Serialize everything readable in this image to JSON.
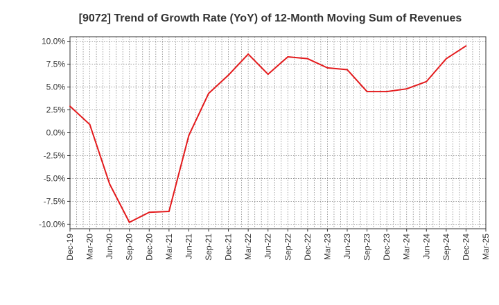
{
  "chart_data": {
    "type": "line",
    "title": "[9072]  Trend of Growth Rate (YoY) of 12-Month Moving Sum of Revenues",
    "xlabel": "",
    "ylabel": "",
    "x_tick_labels": [
      "Dec-19",
      "Mar-20",
      "Jun-20",
      "Sep-20",
      "Dec-20",
      "Mar-21",
      "Jun-21",
      "Sep-21",
      "Dec-21",
      "Mar-22",
      "Jun-22",
      "Sep-22",
      "Dec-22",
      "Mar-23",
      "Jun-23",
      "Sep-23",
      "Dec-23",
      "Mar-24",
      "Jun-24",
      "Sep-24",
      "Dec-24",
      "Mar-25"
    ],
    "y_ticks": [
      10.0,
      7.5,
      5.0,
      2.5,
      0.0,
      -2.5,
      -5.0,
      -7.5,
      -10.0
    ],
    "y_tick_labels": [
      "10.0%",
      "7.5%",
      "5.0%",
      "2.5%",
      "0.0%",
      "-2.5%",
      "-5.0%",
      "-7.5%",
      "-10.0%"
    ],
    "ylim": [
      -10.5,
      10.5
    ],
    "grid": true,
    "line_color": "#e31a1c",
    "series": [
      {
        "x": [
          "Dec-19",
          "Mar-20",
          "Jun-20",
          "Sep-20",
          "Dec-20",
          "Mar-21",
          "Jun-21",
          "Sep-21",
          "Dec-21",
          "Mar-22",
          "Jun-22",
          "Sep-22",
          "Dec-22",
          "Mar-23",
          "Jun-23",
          "Sep-23",
          "Dec-23",
          "Mar-24",
          "Jun-24",
          "Sep-24",
          "Dec-24"
        ],
        "values": [
          2.9,
          0.9,
          -5.6,
          -9.8,
          -8.7,
          -8.6,
          -0.3,
          4.3,
          6.3,
          8.6,
          6.4,
          8.3,
          8.1,
          7.1,
          6.9,
          4.5,
          4.5,
          4.8,
          5.6,
          8.1,
          9.5
        ]
      }
    ]
  }
}
